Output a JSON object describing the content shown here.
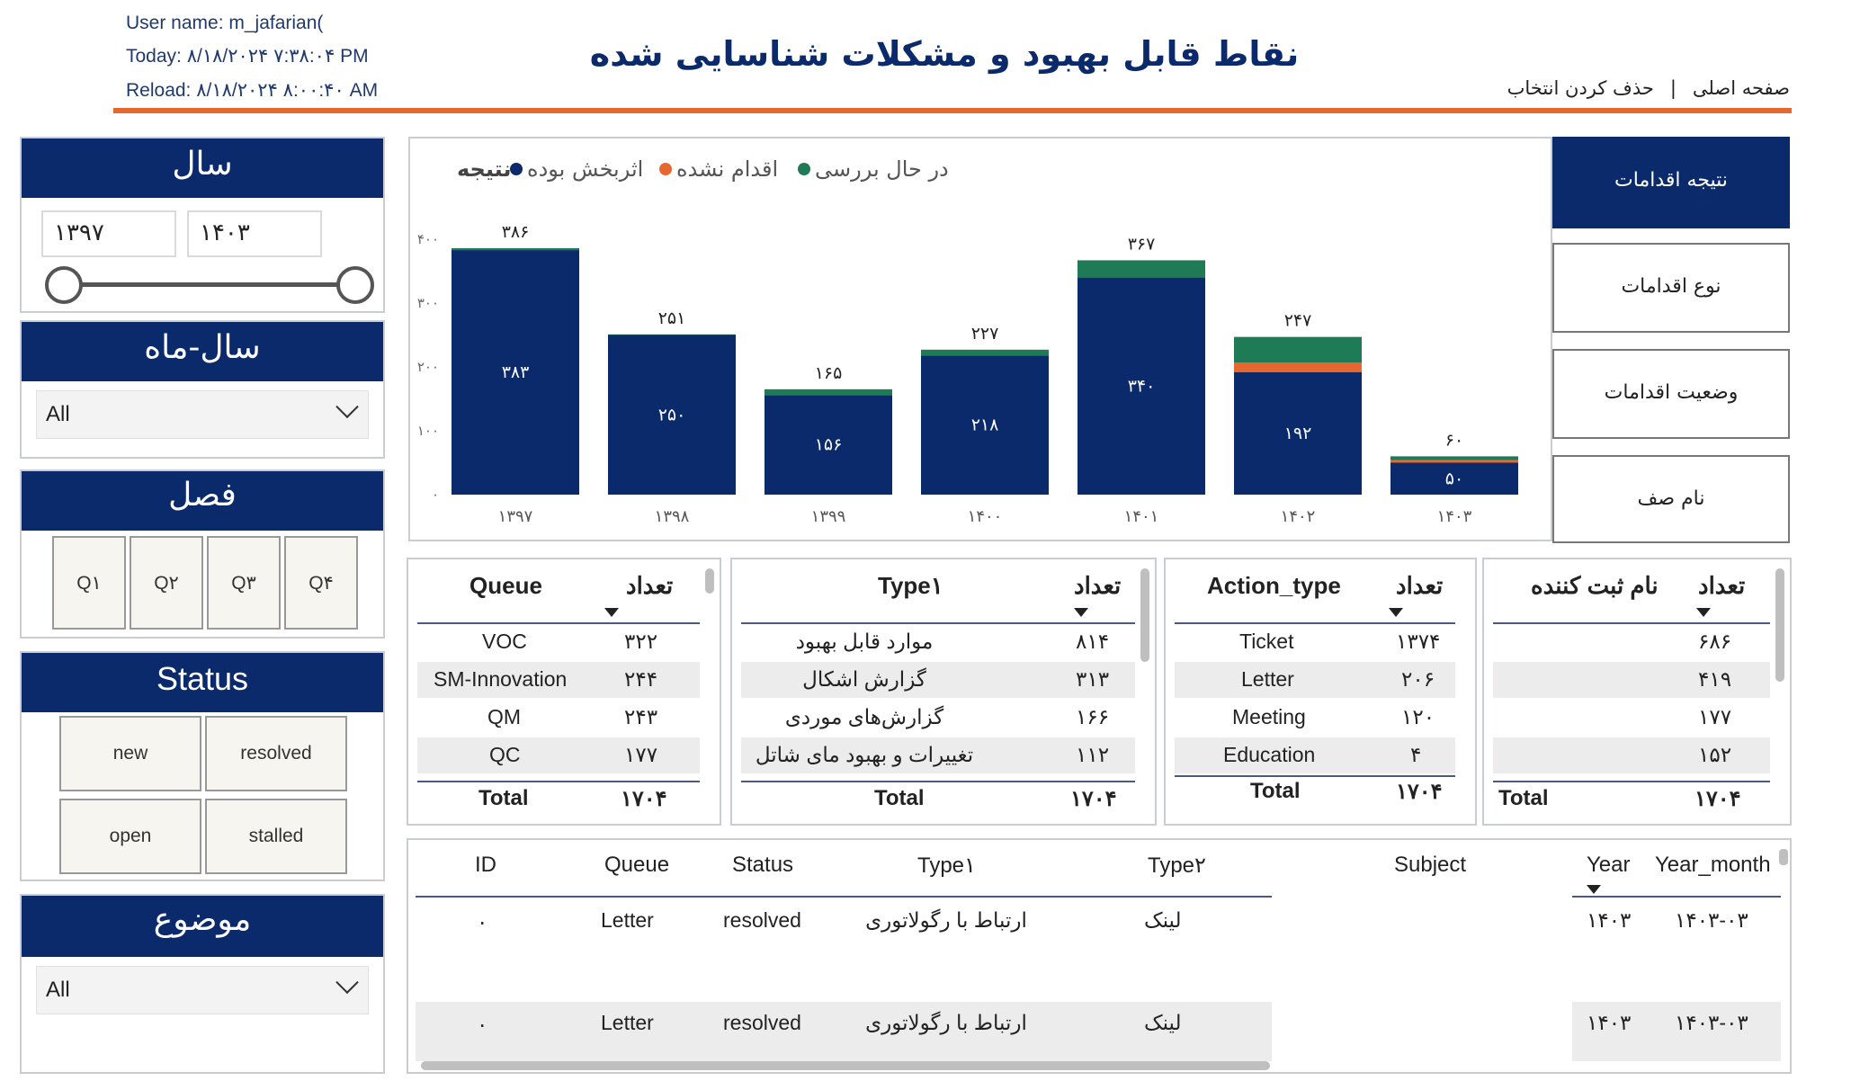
{
  "header": {
    "user_line": "User name: m_jafarian(",
    "today_line": "Today: ۸/۱۸/۲۰۲۴ ۷:۳۸:۰۴ PM",
    "reload_line": "Reload: ۸/۱۸/۲۰۲۴ ۸:۰۰:۴۰ AM",
    "title": "نقاط قابل بهبود و مشکلات شناسایی شده",
    "home_link": "صفحه اصلی",
    "separator": "|",
    "clear_link": "حذف کردن انتخاب"
  },
  "colors": {
    "navy": "#0b2a6b",
    "orange": "#e8672e",
    "green": "#1e7b55"
  },
  "slicers": {
    "year": {
      "title": "سال",
      "from": "۱۳۹۷",
      "to": "۱۴۰۳"
    },
    "year_month": {
      "title": "سال-ماه",
      "value": "All"
    },
    "season": {
      "title": "فصل",
      "options": [
        "Q۱",
        "Q۲",
        "Q۳",
        "Q۴"
      ]
    },
    "status": {
      "title": "Status",
      "options": [
        "new",
        "resolved",
        "open",
        "stalled"
      ]
    },
    "subject": {
      "title": "موضوع",
      "value": "All"
    }
  },
  "nav": {
    "buttons": [
      "نتیجه اقدامات",
      "نوع اقدامات",
      "وضعیت اقدامات",
      "نام صف"
    ]
  },
  "chart_data": {
    "type": "bar",
    "stacked": true,
    "legend_title": "نتیجه",
    "legend_position": "top-right",
    "categories": [
      "۱۳۹۷",
      "۱۳۹۸",
      "۱۳۹۹",
      "۱۴۰۰",
      "۱۴۰۱",
      "۱۴۰۲",
      "۱۴۰۳"
    ],
    "series": [
      {
        "name": "اثربخش بوده",
        "color": "#0b2a6b",
        "values": [
          383,
          250,
          156,
          218,
          340,
          192,
          50
        ],
        "labels": [
          "۳۸۳",
          "۲۵۰",
          "۱۵۶",
          "۲۱۸",
          "۳۴۰",
          "۱۹۲",
          "۵۰"
        ]
      },
      {
        "name": "اقدام نشده",
        "color": "#e8672e",
        "values": [
          0,
          0,
          0,
          0,
          0,
          15,
          4
        ]
      },
      {
        "name": "در حال بررسی",
        "color": "#1e7b55",
        "values": [
          3,
          1,
          9,
          9,
          27,
          40,
          6
        ]
      }
    ],
    "totals": [
      386,
      251,
      165,
      227,
      367,
      247,
      60
    ],
    "total_labels": [
      "۳۸۶",
      "۲۵۱",
      "۱۶۵",
      "۲۲۷",
      "۳۶۷",
      "۲۴۷",
      "۶۰"
    ],
    "yticks": [
      "۰",
      "۱۰۰",
      "۲۰۰",
      "۳۰۰",
      "۴۰۰"
    ],
    "ylim": [
      0,
      400
    ],
    "xlabel": "",
    "ylabel": ""
  },
  "tables": {
    "queue": {
      "col1": "Queue",
      "col2": "تعداد",
      "rows": [
        [
          "VOC",
          "۳۲۲"
        ],
        [
          "SM-Innovation",
          "۲۴۴"
        ],
        [
          "QM",
          "۲۴۳"
        ],
        [
          "QC",
          "۱۷۷"
        ]
      ],
      "total_label": "Total",
      "total": "۱۷۰۴"
    },
    "type1": {
      "col1": "Type۱",
      "col2": "تعداد",
      "rows": [
        [
          "موارد قابل بهبود",
          "۸۱۴"
        ],
        [
          "گزارش اشکال",
          "۳۱۳"
        ],
        [
          "گزارش‌های موردی",
          "۱۶۶"
        ],
        [
          "تغییرات و بهبود مای شاتل",
          "۱۱۲"
        ]
      ],
      "total_label": "Total",
      "total": "۱۷۰۴"
    },
    "action": {
      "col1": "Action_type",
      "col2": "تعداد",
      "rows": [
        [
          "Ticket",
          "۱۳۷۴"
        ],
        [
          "Letter",
          "۲۰۶"
        ],
        [
          "Meeting",
          "۱۲۰"
        ],
        [
          "Education",
          "۴"
        ]
      ],
      "total_label": "Total",
      "total": "۱۷۰۴"
    },
    "registrar": {
      "col1": "نام ثبت کننده",
      "col2": "تعداد",
      "rows": [
        [
          "",
          "۶۸۶"
        ],
        [
          "",
          "۴۱۹"
        ],
        [
          "",
          "۱۷۷"
        ],
        [
          "",
          "۱۵۲"
        ]
      ],
      "total_label": "Total",
      "total": "۱۷۰۴"
    }
  },
  "detail": {
    "headers": [
      "ID",
      "Queue",
      "Status",
      "Type۱",
      "Type۲",
      "Subject",
      "Year",
      "Year_month"
    ],
    "rows": [
      [
        "۰",
        "Letter",
        "resolved",
        "ارتباط با رگولاتوری",
        "لینک",
        "",
        "۱۴۰۳",
        "۱۴۰۳-۰۳"
      ],
      [
        "۰",
        "Letter",
        "resolved",
        "ارتباط با رگولاتوری",
        "لینک",
        "",
        "۱۴۰۳",
        "۱۴۰۳-۰۳"
      ]
    ]
  }
}
